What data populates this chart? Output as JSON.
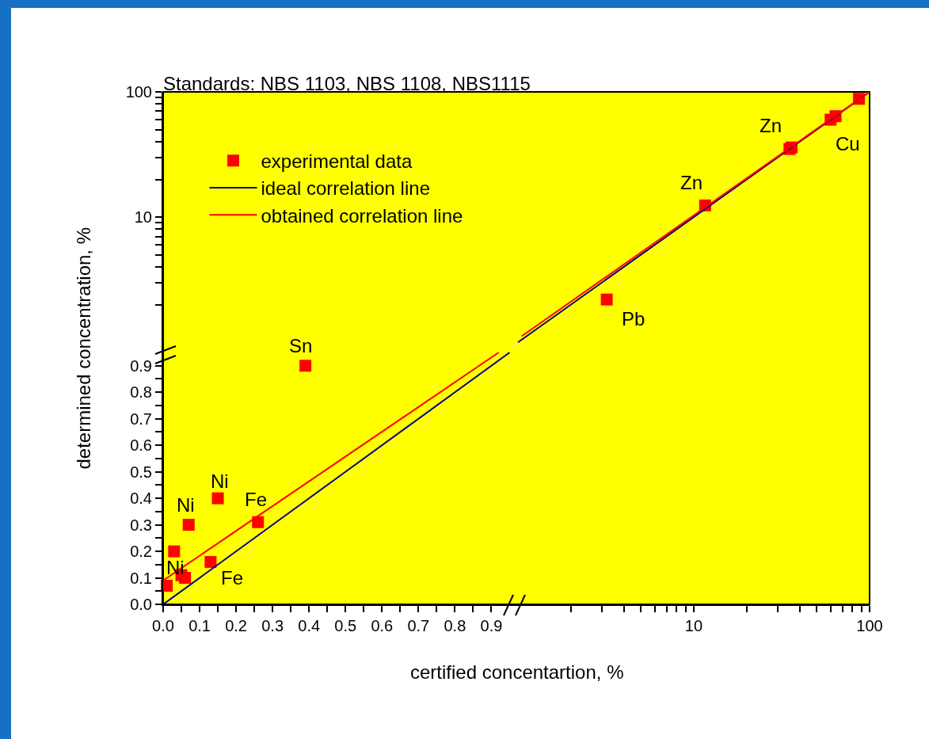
{
  "chart_data": [
    {
      "type": "scatter",
      "legend": false,
      "grid": false,
      "xlim": [
        0,
        1.937
      ],
      "ylim": [
        0,
        1.933
      ],
      "xticks": [
        {
          "value": 0,
          "label": "0.0"
        },
        {
          "value": 0.05,
          "label": null
        },
        {
          "value": 0.1,
          "label": "0.1"
        },
        {
          "value": 0.15,
          "label": null
        },
        {
          "value": 0.2,
          "label": "0.2"
        },
        {
          "value": 0.25,
          "label": null
        },
        {
          "value": 0.3,
          "label": "0.3"
        },
        {
          "value": 0.35,
          "label": null
        },
        {
          "value": 0.4,
          "label": "0.4"
        },
        {
          "value": 0.45,
          "label": null
        },
        {
          "value": 0.5,
          "label": "0.5"
        },
        {
          "value": 0.55,
          "label": null
        },
        {
          "value": 0.6,
          "label": "0.6"
        },
        {
          "value": 0.65,
          "label": null
        },
        {
          "value": 0.7,
          "label": "0.7"
        },
        {
          "value": 0.75,
          "label": null
        },
        {
          "value": 0.8,
          "label": "0.8"
        },
        {
          "value": 0.85,
          "label": null
        },
        {
          "value": 0.9,
          "label": "0.9"
        }
      ],
      "yticks": [
        {
          "value": 0,
          "label": "0.0"
        },
        {
          "value": 0.05,
          "label": null
        },
        {
          "value": 0.1,
          "label": "0.1"
        },
        {
          "value": 0.15,
          "label": null
        },
        {
          "value": 0.2,
          "label": "0.2"
        },
        {
          "value": 0.25,
          "label": null
        },
        {
          "value": 0.3,
          "label": "0.3"
        },
        {
          "value": 0.35,
          "label": null
        },
        {
          "value": 0.4,
          "label": "0.4"
        },
        {
          "value": 0.45,
          "label": null
        },
        {
          "value": 0.5,
          "label": "0.5"
        },
        {
          "value": 0.55,
          "label": null
        },
        {
          "value": 0.6,
          "label": "0.6"
        },
        {
          "value": 0.65,
          "label": null
        },
        {
          "value": 0.7,
          "label": "0.7"
        },
        {
          "value": 0.75,
          "label": null
        },
        {
          "value": 0.8,
          "label": "0.8"
        },
        {
          "value": 0.85,
          "label": null
        },
        {
          "value": 0.9,
          "label": "0.9"
        }
      ],
      "series": [
        {
          "type": "scatter",
          "marker": "square",
          "color": "#ff0000",
          "x": [
            0.01,
            0.03,
            0.05,
            0.06,
            0.07,
            0.13,
            0.15,
            0.26,
            0.39
          ],
          "values": [
            0.07,
            0.2,
            0.11,
            0.1,
            0.3,
            0.16,
            0.4,
            0.31,
            0.9
          ]
        },
        {
          "type": "line",
          "line_style": "solid",
          "color": "#000080",
          "x": [
            0,
            0.95
          ],
          "values": [
            0,
            0.95
          ]
        },
        {
          "type": "line",
          "line_style": "solid",
          "color": "#ff0000",
          "x": [
            0,
            0.92
          ],
          "values": [
            0.09,
            0.95
          ]
        }
      ],
      "annotations": [
        {
          "text": "Ni",
          "x": 0.03,
          "y": 0.2
        },
        {
          "text": "Ni",
          "x": 0.07,
          "y": 0.3
        },
        {
          "text": "Ni",
          "x": 0.15,
          "y": 0.4
        },
        {
          "text": "Fe",
          "x": 0.26,
          "y": 0.31
        },
        {
          "text": "Fe",
          "x": 0.13,
          "y": 0.16
        },
        {
          "text": "Sn",
          "x": 0.39,
          "y": 0.9
        }
      ]
    },
    {
      "type": "scatter",
      "title": "Standards: NBS 1103, NBS 1108, NBS1115",
      "xlabel": "certified concentartion, %",
      "ylabel": "determined concentration, %",
      "legend": "top left",
      "grid": false,
      "log": "xy",
      "xlim": [
        0.0096,
        100
      ],
      "ylim": [
        0.0081,
        100
      ],
      "xticks": [
        {
          "value": 2,
          "label": null
        },
        {
          "value": 3,
          "label": null
        },
        {
          "value": 4,
          "label": null
        },
        {
          "value": 5,
          "label": null
        },
        {
          "value": 6,
          "label": null
        },
        {
          "value": 7,
          "label": null
        },
        {
          "value": 8,
          "label": null
        },
        {
          "value": 9,
          "label": null
        },
        10,
        {
          "value": 20,
          "label": null
        },
        {
          "value": 30,
          "label": null
        },
        {
          "value": 40,
          "label": null
        },
        {
          "value": 50,
          "label": null
        },
        {
          "value": 60,
          "label": null
        },
        {
          "value": 70,
          "label": null
        },
        {
          "value": 80,
          "label": null
        },
        {
          "value": 90,
          "label": null
        },
        100
      ],
      "yticks": [
        {
          "value": 2,
          "label": null
        },
        {
          "value": 3,
          "label": null
        },
        {
          "value": 4,
          "label": null
        },
        {
          "value": 5,
          "label": null
        },
        {
          "value": 6,
          "label": null
        },
        {
          "value": 7,
          "label": null
        },
        {
          "value": 8,
          "label": null
        },
        {
          "value": 9,
          "label": null
        },
        10,
        {
          "value": 20,
          "label": null
        },
        {
          "value": 30,
          "label": null
        },
        {
          "value": 40,
          "label": null
        },
        {
          "value": 50,
          "label": null
        },
        {
          "value": 60,
          "label": null
        },
        {
          "value": 70,
          "label": null
        },
        {
          "value": 80,
          "label": null
        },
        {
          "value": 90,
          "label": null
        },
        100
      ],
      "series": [
        {
          "name": "experimental data",
          "type": "scatter",
          "marker": "square",
          "color": "#ff0000",
          "x": [
            3.2,
            11.6,
            35,
            36,
            60,
            64,
            87
          ],
          "values": [
            2.2,
            12.4,
            35,
            36,
            60,
            64,
            88
          ]
        },
        {
          "name": "ideal correlation line",
          "type": "line",
          "line_style": "solid",
          "color": "#000080",
          "x": [
            1,
            100
          ],
          "values": [
            1,
            100
          ]
        },
        {
          "name": "obtained correlation line",
          "type": "line",
          "line_style": "solid",
          "color": "#ff0000",
          "x": [
            1.05,
            100
          ],
          "values": [
            1.12,
            100
          ]
        }
      ],
      "annotations": [
        {
          "text": "Pb",
          "x": 3.2,
          "y": 2.2
        },
        {
          "text": "Zn",
          "x": 11.6,
          "y": 12.4
        },
        {
          "text": "Zn",
          "x": 35,
          "y": 35
        },
        {
          "text": "Cu",
          "x": 64,
          "y": 64
        }
      ]
    }
  ]
}
